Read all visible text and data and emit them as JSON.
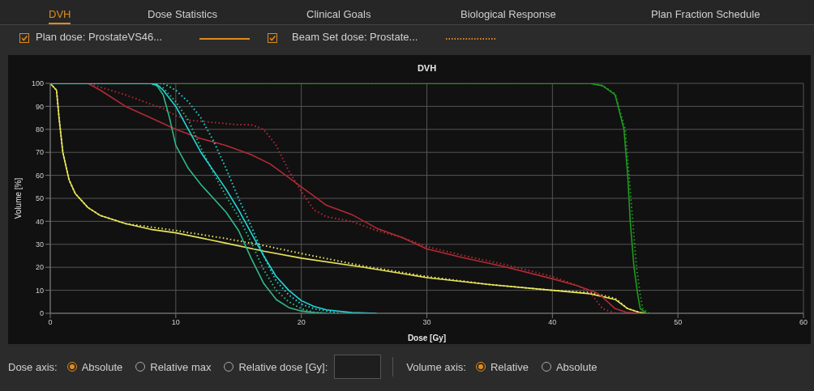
{
  "chart_data": {
    "type": "line",
    "title": "DVH",
    "xlabel": "Dose [Gy]",
    "ylabel": "Volume [%]",
    "xlim": [
      0,
      60
    ],
    "xticks": [
      0,
      10,
      20,
      30,
      40,
      50,
      60
    ],
    "ylim": [
      0,
      100
    ],
    "yticks": [
      0,
      10,
      20,
      30,
      40,
      50,
      60,
      70,
      80,
      90,
      100
    ],
    "grid": true,
    "marker": "none",
    "annotations": [
      "DVH",
      "Dose Statistics",
      "Clinical Goals",
      "Biological Response",
      "Plan Fraction Schedule",
      "Plan dose: ProstateVS46...",
      "Beam Set dose: Prostate...",
      "Dose axis:",
      "Absolute",
      "Relative max",
      "Relative dose [Gy]:",
      "Volume axis:",
      "Relative",
      "Absolute"
    ],
    "series": [
      {
        "color": "#e8e65a",
        "line_style": "solid",
        "x": [
          0,
          0.5,
          0.7,
          1,
          1.5,
          2,
          3,
          4,
          6,
          8,
          10,
          14,
          17,
          20,
          25,
          30,
          35,
          40,
          43,
          45,
          46,
          47,
          47.5
        ],
        "values": [
          100,
          97,
          85,
          70,
          58,
          52,
          46,
          42.5,
          39,
          36.5,
          35,
          30.5,
          27,
          24,
          20,
          15.5,
          12.5,
          10,
          8.5,
          6,
          2,
          0.3,
          0
        ]
      },
      {
        "color": "#e8e65a",
        "line_style": "dotted",
        "x": [
          0,
          0.5,
          0.7,
          1,
          1.5,
          2,
          3,
          4,
          6,
          8,
          10,
          14,
          17,
          20,
          25,
          30,
          35,
          40,
          43,
          45,
          46,
          47,
          47.5
        ],
        "values": [
          100,
          97,
          85,
          70,
          58,
          52,
          46,
          42.5,
          39,
          37.5,
          36,
          32.5,
          29.5,
          26,
          20.5,
          16,
          12.5,
          10,
          9,
          6.5,
          2,
          0.3,
          0
        ]
      },
      {
        "color": "#b22a35",
        "line_style": "solid",
        "x": [
          0,
          3,
          4,
          6,
          8,
          10,
          12,
          14,
          16,
          17.5,
          19,
          20,
          21,
          22,
          24,
          26,
          28,
          30,
          33,
          36,
          40,
          42,
          43.5,
          44,
          45,
          46,
          47
        ],
        "values": [
          100,
          100,
          97,
          90,
          85,
          80,
          76,
          73,
          69,
          65,
          59,
          55,
          51,
          47,
          43,
          37,
          33,
          28,
          24,
          20.5,
          15,
          12,
          9,
          7,
          2,
          0.3,
          0
        ]
      },
      {
        "color": "#b22a35",
        "line_style": "dotted",
        "x": [
          0,
          3,
          6,
          8,
          9,
          10,
          11,
          13,
          15,
          16,
          17,
          18,
          19,
          20,
          21,
          22,
          24,
          26,
          28,
          30,
          33,
          36,
          40,
          42,
          43,
          44,
          45
        ],
        "values": [
          100,
          100,
          95,
          91,
          89,
          86,
          84,
          83,
          82,
          82,
          80,
          73,
          62,
          53,
          45,
          42,
          40,
          36,
          33,
          29,
          25,
          21.5,
          16,
          12,
          9,
          2,
          0
        ]
      },
      {
        "color": "#1f9a1f",
        "line_style": "solid",
        "x": [
          0,
          43,
          44,
          45,
          45.7,
          46,
          46.2,
          46.5,
          46.8,
          47,
          47.5
        ],
        "values": [
          100,
          100,
          99,
          95,
          80,
          60,
          40,
          20,
          8,
          2,
          0
        ]
      },
      {
        "color": "#1f9a1f",
        "line_style": "dotted",
        "x": [
          0,
          43,
          44,
          45,
          45.8,
          46.1,
          46.4,
          46.7,
          47,
          47.2,
          47.7
        ],
        "values": [
          100,
          100,
          99,
          95.5,
          80,
          60,
          40,
          20,
          8,
          2,
          0
        ]
      },
      {
        "color": "#2fb88a",
        "line_style": "solid",
        "x": [
          0,
          8,
          8.5,
          9,
          9.5,
          10,
          11,
          12,
          13,
          14,
          15,
          16,
          17,
          18,
          19,
          20,
          21,
          22
        ],
        "values": [
          100,
          100,
          99,
          95,
          85,
          73,
          63,
          56,
          50,
          44,
          36,
          24,
          13,
          6,
          2.5,
          1,
          0.3,
          0
        ]
      },
      {
        "color": "#2fb88a",
        "line_style": "dotted",
        "x": [
          0,
          8,
          9,
          10,
          11,
          12,
          13,
          14,
          15,
          16,
          17,
          18,
          19,
          20,
          21,
          22
        ],
        "values": [
          100,
          100,
          98,
          92,
          84,
          72,
          61,
          51,
          42,
          31,
          19,
          10,
          5,
          2,
          0.5,
          0
        ]
      },
      {
        "color": "#1fd8d8",
        "line_style": "solid",
        "x": [
          0,
          8,
          8.5,
          9,
          10,
          11,
          12,
          13,
          14,
          15,
          16,
          17,
          18,
          19,
          20,
          21,
          22,
          24,
          26
        ],
        "values": [
          100,
          100,
          99.5,
          97,
          90,
          80,
          70,
          62,
          54,
          45,
          35,
          25,
          16,
          10,
          5.5,
          3,
          1.5,
          0.3,
          0
        ]
      },
      {
        "color": "#1fd8d8",
        "line_style": "dotted",
        "x": [
          0,
          9,
          10,
          11,
          12,
          13,
          14,
          15,
          16,
          17,
          18,
          19,
          20,
          21,
          22,
          23
        ],
        "values": [
          100,
          100,
          97,
          92,
          85,
          75,
          63,
          50,
          38,
          25,
          14,
          8,
          4,
          2,
          1,
          0
        ]
      }
    ]
  }
}
